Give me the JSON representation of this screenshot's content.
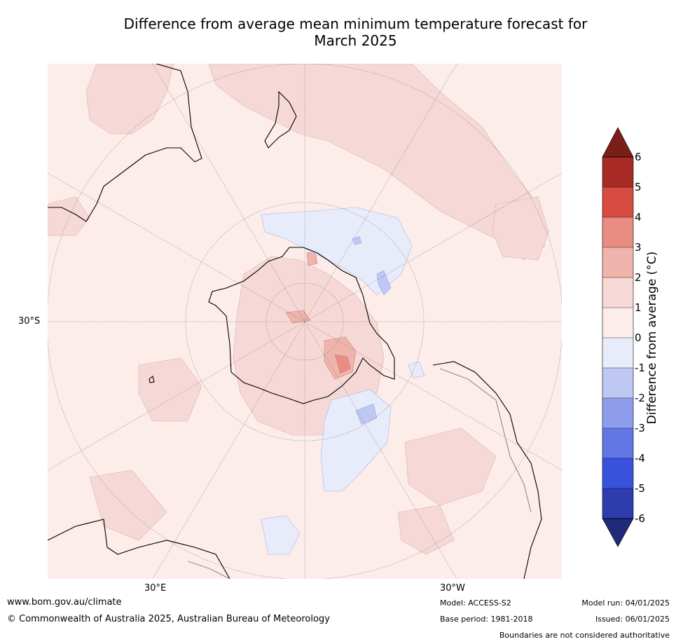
{
  "title": {
    "line1": "Difference from average mean minimum temperature forecast for",
    "line2": "March 2025"
  },
  "map": {
    "background_color": "#fcecea",
    "lat_label_left": "30°S",
    "lon_labels": [
      "30°E",
      "30°W"
    ]
  },
  "colorbar": {
    "label": "Difference from average (°C)",
    "ticks": [
      "6",
      "5",
      "4",
      "3",
      "2",
      "1",
      "0",
      "-1",
      "-2",
      "-3",
      "-4",
      "-5",
      "-6"
    ],
    "colors_top_to_bottom": [
      "#a82a24",
      "#d84b40",
      "#e98c82",
      "#efb5ad",
      "#f6d9d6",
      "#fcecea",
      "#e8ecfa",
      "#bfc7f3",
      "#8f9ded",
      "#6276e5",
      "#3952de",
      "#2d3dad"
    ],
    "over_color": "#7b1e1a",
    "under_color": "#1f2a7a"
  },
  "footer": {
    "website": "www.bom.gov.au/climate",
    "copyright": "© Commonwealth of Australia 2025, Australian Bureau of Meteorology",
    "model": "Model: ACCESS-S2",
    "base_period": "Base period: 1981-2018",
    "model_run": "Model run: 04/01/2025",
    "issued": "Issued: 06/01/2025",
    "disclaimer": "Boundaries are not considered authoritative"
  }
}
